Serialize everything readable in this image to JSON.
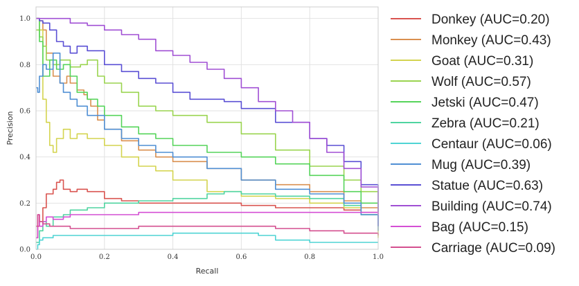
{
  "chart_data": {
    "type": "line",
    "xlabel": "Recall",
    "ylabel": "Precision",
    "xlim": [
      0.0,
      1.0
    ],
    "ylim": [
      0.0,
      1.05
    ],
    "xticks": [
      "0.0",
      "0.2",
      "0.4",
      "0.6",
      "0.8",
      "1.0"
    ],
    "yticks": [
      "0.0",
      "0.2",
      "0.4",
      "0.6",
      "0.8",
      "1.0"
    ],
    "grid": true,
    "legend_position": "right",
    "series": [
      {
        "name": "Donkey (AUC=0.20)",
        "color": "#d9534f",
        "x": [
          0.0,
          0.005,
          0.01,
          0.02,
          0.03,
          0.05,
          0.06,
          0.07,
          0.08,
          0.1,
          0.12,
          0.15,
          0.2,
          0.25,
          0.3,
          0.35,
          0.4,
          0.5,
          0.6,
          0.7,
          0.8,
          0.9,
          0.95,
          1.0
        ],
        "y": [
          0.05,
          0.1,
          0.12,
          0.18,
          0.24,
          0.26,
          0.29,
          0.3,
          0.26,
          0.25,
          0.26,
          0.25,
          0.22,
          0.21,
          0.2,
          0.2,
          0.2,
          0.2,
          0.19,
          0.18,
          0.18,
          0.17,
          0.16,
          0.15
        ]
      },
      {
        "name": "Monkey (AUC=0.43)",
        "color": "#d98f4f",
        "x": [
          0.0,
          0.01,
          0.02,
          0.03,
          0.05,
          0.07,
          0.09,
          0.1,
          0.12,
          0.14,
          0.15,
          0.16,
          0.18,
          0.2,
          0.25,
          0.3,
          0.35,
          0.4,
          0.5,
          0.6,
          0.7,
          0.8,
          0.9,
          0.95,
          1.0
        ],
        "y": [
          1.0,
          0.99,
          0.95,
          0.85,
          0.75,
          0.72,
          0.75,
          0.72,
          0.69,
          0.67,
          0.65,
          0.62,
          0.56,
          0.52,
          0.47,
          0.43,
          0.4,
          0.38,
          0.35,
          0.3,
          0.28,
          0.25,
          0.21,
          0.18,
          0.1
        ]
      },
      {
        "name": "Goat (AUC=0.31)",
        "color": "#d4d44f",
        "x": [
          0.0,
          0.01,
          0.02,
          0.03,
          0.04,
          0.05,
          0.06,
          0.08,
          0.1,
          0.12,
          0.15,
          0.2,
          0.25,
          0.3,
          0.35,
          0.4,
          0.5,
          0.6,
          0.7,
          0.8,
          0.9,
          0.95,
          1.0
        ],
        "y": [
          1.0,
          0.95,
          0.65,
          0.55,
          0.45,
          0.42,
          0.48,
          0.52,
          0.48,
          0.5,
          0.48,
          0.45,
          0.4,
          0.36,
          0.34,
          0.3,
          0.25,
          0.23,
          0.22,
          0.2,
          0.18,
          0.15,
          0.05
        ]
      },
      {
        "name": "Wolf (AUC=0.57)",
        "color": "#9ad44f",
        "x": [
          0.0,
          0.01,
          0.02,
          0.03,
          0.05,
          0.07,
          0.1,
          0.13,
          0.15,
          0.18,
          0.2,
          0.25,
          0.3,
          0.35,
          0.4,
          0.5,
          0.6,
          0.7,
          0.8,
          0.9,
          0.95,
          1.0
        ],
        "y": [
          0.95,
          0.92,
          0.88,
          0.82,
          0.8,
          0.82,
          0.79,
          0.8,
          0.82,
          0.75,
          0.72,
          0.68,
          0.62,
          0.6,
          0.58,
          0.55,
          0.5,
          0.43,
          0.36,
          0.3,
          0.25,
          0.15
        ]
      },
      {
        "name": "Jetski (AUC=0.47)",
        "color": "#55d45a",
        "x": [
          0.0,
          0.01,
          0.02,
          0.04,
          0.06,
          0.08,
          0.1,
          0.12,
          0.15,
          0.18,
          0.2,
          0.25,
          0.3,
          0.35,
          0.4,
          0.5,
          0.6,
          0.7,
          0.8,
          0.9,
          0.95,
          1.0
        ],
        "y": [
          1.0,
          0.9,
          0.75,
          0.82,
          0.78,
          0.8,
          0.75,
          0.68,
          0.65,
          0.62,
          0.58,
          0.53,
          0.5,
          0.48,
          0.45,
          0.42,
          0.4,
          0.37,
          0.32,
          0.25,
          0.2,
          0.12
        ]
      },
      {
        "name": "Zebra (AUC=0.21)",
        "color": "#4fd4a0",
        "x": [
          0.0,
          0.01,
          0.02,
          0.03,
          0.05,
          0.08,
          0.1,
          0.15,
          0.2,
          0.3,
          0.4,
          0.5,
          0.55,
          0.6,
          0.7,
          0.8,
          0.9,
          0.95,
          1.0
        ],
        "y": [
          0.03,
          0.08,
          0.12,
          0.1,
          0.14,
          0.15,
          0.17,
          0.18,
          0.2,
          0.21,
          0.22,
          0.24,
          0.25,
          0.24,
          0.23,
          0.22,
          0.19,
          0.15,
          0.1
        ]
      },
      {
        "name": "Centaur (AUC=0.06)",
        "color": "#4fd4d4",
        "x": [
          0.0,
          0.005,
          0.01,
          0.02,
          0.05,
          0.1,
          0.2,
          0.3,
          0.4,
          0.5,
          0.6,
          0.65,
          0.7,
          0.8,
          0.9,
          1.0
        ],
        "y": [
          0.0,
          0.02,
          0.04,
          0.05,
          0.06,
          0.06,
          0.06,
          0.06,
          0.07,
          0.07,
          0.07,
          0.06,
          0.04,
          0.03,
          0.03,
          0.03
        ]
      },
      {
        "name": "Mug (AUC=0.39)",
        "color": "#4f8fd4",
        "x": [
          0.0,
          0.005,
          0.01,
          0.02,
          0.03,
          0.05,
          0.07,
          0.08,
          0.1,
          0.12,
          0.15,
          0.2,
          0.25,
          0.3,
          0.35,
          0.4,
          0.5,
          0.6,
          0.7,
          0.8,
          0.9,
          0.95,
          1.0
        ],
        "y": [
          0.7,
          0.68,
          0.75,
          0.8,
          0.78,
          0.85,
          0.72,
          0.68,
          0.65,
          0.62,
          0.58,
          0.52,
          0.48,
          0.45,
          0.42,
          0.4,
          0.35,
          0.3,
          0.26,
          0.24,
          0.2,
          0.15,
          0.08
        ]
      },
      {
        "name": "Statue (AUC=0.63)",
        "color": "#5a4fd4",
        "x": [
          0.0,
          0.01,
          0.02,
          0.04,
          0.06,
          0.08,
          0.1,
          0.12,
          0.15,
          0.2,
          0.25,
          0.3,
          0.35,
          0.4,
          0.45,
          0.5,
          0.55,
          0.6,
          0.7,
          0.8,
          0.85,
          0.9,
          0.95,
          1.0
        ],
        "y": [
          1.0,
          0.99,
          0.98,
          0.95,
          0.9,
          0.88,
          0.85,
          0.88,
          0.86,
          0.8,
          0.77,
          0.74,
          0.72,
          0.68,
          0.65,
          0.65,
          0.64,
          0.61,
          0.55,
          0.48,
          0.45,
          0.38,
          0.28,
          0.1
        ]
      },
      {
        "name": "Building (AUC=0.74)",
        "color": "#a04fd4",
        "x": [
          0.0,
          0.02,
          0.05,
          0.1,
          0.15,
          0.2,
          0.25,
          0.3,
          0.35,
          0.4,
          0.45,
          0.5,
          0.55,
          0.6,
          0.65,
          0.7,
          0.75,
          0.8,
          0.85,
          0.9,
          0.95,
          1.0
        ],
        "y": [
          1.0,
          1.0,
          1.0,
          0.98,
          0.97,
          0.95,
          0.93,
          0.91,
          0.86,
          0.84,
          0.81,
          0.78,
          0.74,
          0.7,
          0.64,
          0.6,
          0.55,
          0.48,
          0.42,
          0.35,
          0.27,
          0.15
        ]
      },
      {
        "name": "Bag (AUC=0.15)",
        "color": "#d44fd4",
        "x": [
          0.0,
          0.005,
          0.01,
          0.02,
          0.03,
          0.05,
          0.08,
          0.1,
          0.15,
          0.2,
          0.3,
          0.4,
          0.5,
          0.6,
          0.7,
          0.8,
          0.9,
          1.0
        ],
        "y": [
          0.05,
          0.15,
          0.1,
          0.12,
          0.14,
          0.13,
          0.14,
          0.15,
          0.15,
          0.15,
          0.16,
          0.16,
          0.16,
          0.16,
          0.16,
          0.16,
          0.16,
          0.15
        ]
      },
      {
        "name": "Carriage (AUC=0.09)",
        "color": "#d44f8f",
        "x": [
          0.0,
          0.005,
          0.01,
          0.02,
          0.04,
          0.06,
          0.08,
          0.1,
          0.15,
          0.2,
          0.3,
          0.4,
          0.5,
          0.6,
          0.7,
          0.8,
          0.9,
          1.0
        ],
        "y": [
          0.1,
          0.15,
          0.12,
          0.11,
          0.1,
          0.1,
          0.1,
          0.09,
          0.09,
          0.09,
          0.1,
          0.1,
          0.1,
          0.1,
          0.09,
          0.08,
          0.07,
          0.06
        ]
      }
    ]
  }
}
